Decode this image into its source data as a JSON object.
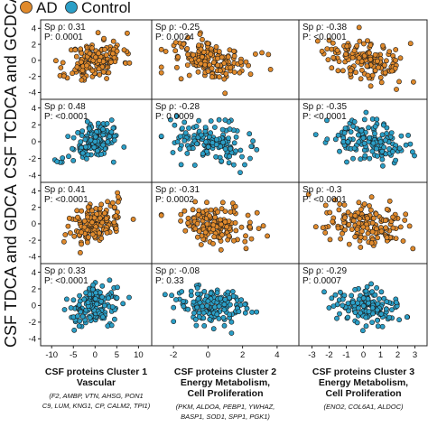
{
  "legend": {
    "items": [
      {
        "label": "AD",
        "color": "#e08a2c"
      },
      {
        "label": "Control",
        "color": "#2b9fc7"
      }
    ]
  },
  "row_labels": [
    "CSF TCDCA and GCDCA",
    "CSF TDCA and GDCA"
  ],
  "columns": [
    {
      "title_lines": [
        "CSF proteins Cluster 1",
        "Vascular"
      ],
      "gene_lines": [
        "(F2, AMBP, VTN, AHSG, PON1",
        "C9, LUM, KNG1, CP, CALM2, TPI1)"
      ]
    },
    {
      "title_lines": [
        "CSF proteins Cluster 2",
        "Energy Metabolism,",
        "Cell Proliferation"
      ],
      "gene_lines": [
        "(PKM, ALDOA, PEBP1, YWHAZ,",
        "BASP1, SOD1, SPP1, PGK1)"
      ]
    },
    {
      "title_lines": [
        "CSF proteins Cluster 3",
        "Energy Metabolism,",
        "Cell Proliferation"
      ],
      "gene_lines": [
        "(ENO2, COL6A1, ALDOC)"
      ]
    }
  ],
  "chart_data": {
    "type": "scatter",
    "x_axes": [
      {
        "ticks": [
          -10,
          -5,
          0,
          5,
          10
        ],
        "xlim": [
          -11.5,
          12
        ]
      },
      {
        "ticks": [
          -2,
          0,
          2,
          4
        ],
        "xlim": [
          -3,
          5
        ]
      },
      {
        "ticks": [
          -3,
          -2,
          -1,
          0,
          1,
          2,
          3
        ],
        "xlim": [
          -3.5,
          3.5
        ]
      }
    ],
    "y_axis": {
      "ticks": [
        -4,
        -2,
        0,
        2,
        4
      ],
      "ylim": [
        -4.4,
        4.6
      ]
    },
    "panels": [
      {
        "row": 0,
        "col": 0,
        "group": "AD",
        "stat_lines": [
          "Sp ρ: 0.31",
          "P: 0.0001"
        ],
        "rho": 0.31,
        "x_center": 0,
        "x_sd": 3.2,
        "y_sd": 1.3,
        "n": 150,
        "seed": 11
      },
      {
        "row": 0,
        "col": 1,
        "group": "AD",
        "stat_lines": [
          "Sp ρ: -0.25",
          "P: 0.0024"
        ],
        "rho": -0.25,
        "x_center": 0.2,
        "x_sd": 1.2,
        "y_sd": 1.3,
        "n": 150,
        "seed": 12
      },
      {
        "row": 0,
        "col": 2,
        "group": "AD",
        "stat_lines": [
          "Sp ρ: -0.38",
          "P: <0.0001"
        ],
        "rho": -0.38,
        "x_center": 0.1,
        "x_sd": 1.2,
        "y_sd": 1.3,
        "n": 150,
        "seed": 13
      },
      {
        "row": 1,
        "col": 0,
        "group": "Control",
        "stat_lines": [
          "Sp ρ: 0.48",
          "P: <0.0001"
        ],
        "rho": 0.48,
        "x_center": 0,
        "x_sd": 3.0,
        "y_sd": 1.2,
        "n": 140,
        "seed": 21
      },
      {
        "row": 1,
        "col": 1,
        "group": "Control",
        "stat_lines": [
          "Sp ρ: -0.28",
          "P: 0.0009"
        ],
        "rho": -0.28,
        "x_center": 0.1,
        "x_sd": 1.1,
        "y_sd": 1.2,
        "n": 140,
        "seed": 22
      },
      {
        "row": 1,
        "col": 2,
        "group": "Control",
        "stat_lines": [
          "Sp ρ: -0.35",
          "P: <0.0001"
        ],
        "rho": -0.35,
        "x_center": 0.2,
        "x_sd": 1.1,
        "y_sd": 1.2,
        "n": 140,
        "seed": 23
      },
      {
        "row": 2,
        "col": 0,
        "group": "AD",
        "stat_lines": [
          "Sp ρ: 0.41",
          "P: <0.0001"
        ],
        "rho": 0.41,
        "x_center": 0,
        "x_sd": 3.2,
        "y_sd": 1.3,
        "n": 150,
        "seed": 31
      },
      {
        "row": 2,
        "col": 1,
        "group": "AD",
        "stat_lines": [
          "Sp ρ: -0.31",
          "P: 0.0002"
        ],
        "rho": -0.31,
        "x_center": 0.2,
        "x_sd": 1.2,
        "y_sd": 1.3,
        "n": 150,
        "seed": 32
      },
      {
        "row": 2,
        "col": 2,
        "group": "AD",
        "stat_lines": [
          "Sp ρ: -0.3",
          "P: <0.0001"
        ],
        "rho": -0.3,
        "x_center": 0.1,
        "x_sd": 1.2,
        "y_sd": 1.3,
        "n": 150,
        "seed": 33
      },
      {
        "row": 3,
        "col": 0,
        "group": "Control",
        "stat_lines": [
          "Sp ρ: 0.33",
          "P: <0.0001"
        ],
        "rho": 0.33,
        "x_center": 0,
        "x_sd": 3.0,
        "y_sd": 1.2,
        "n": 140,
        "seed": 41
      },
      {
        "row": 3,
        "col": 1,
        "group": "Control",
        "stat_lines": [
          "Sp ρ: -0.08",
          "P: 0.33"
        ],
        "rho": -0.08,
        "x_center": 0.1,
        "x_sd": 1.1,
        "y_sd": 1.2,
        "n": 140,
        "seed": 42
      },
      {
        "row": 3,
        "col": 2,
        "group": "Control",
        "stat_lines": [
          "Sp ρ: -0.29",
          "P: 0.0007"
        ],
        "rho": -0.29,
        "x_center": 0.2,
        "x_sd": 1.1,
        "y_sd": 1.2,
        "n": 140,
        "seed": 43
      }
    ]
  }
}
